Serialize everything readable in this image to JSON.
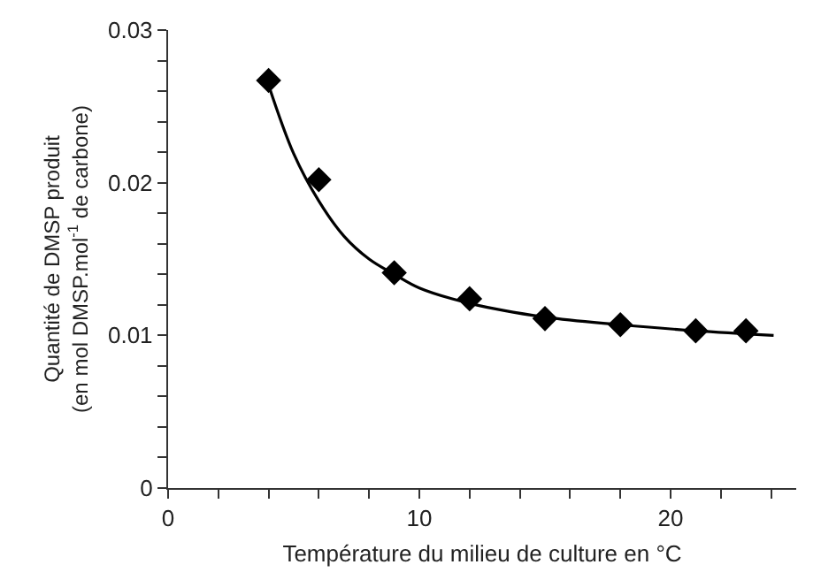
{
  "chart_data": {
    "type": "scatter",
    "xlabel": "Température du milieu de culture en °C",
    "ylabel": "Quantité de DMSP produit\n(en mol DMSP.mol$^{-1}$ de carbone)",
    "series": [
      {
        "color": "#000000",
        "marker": "diamond",
        "x": [
          4,
          6,
          9,
          12,
          15,
          18,
          21,
          23
        ],
        "values": [
          0.0267,
          0.0202,
          0.0141,
          0.0124,
          0.0111,
          0.0107,
          0.0103,
          0.0103
        ]
      },
      {
        "type": "line",
        "color": "#000000",
        "marker": "none",
        "line_style": "solid",
        "x": [
          4,
          5,
          6,
          7,
          8,
          9,
          10,
          12,
          15,
          18,
          21,
          24.1
        ],
        "values": [
          0.0264,
          0.0219,
          0.0188,
          0.0165,
          0.015,
          0.014,
          0.0131,
          0.0121,
          0.0112,
          0.0107,
          0.0103,
          0.01
        ]
      }
    ],
    "xlim": [
      0,
      25
    ],
    "ylim": [
      0,
      0.03
    ],
    "xticks": [
      0,
      {
        "value": 2,
        "label": null
      },
      {
        "value": 4,
        "label": null
      },
      {
        "value": 6,
        "label": null
      },
      {
        "value": 8,
        "label": null
      },
      10,
      {
        "value": 12,
        "label": null
      },
      {
        "value": 14,
        "label": null
      },
      {
        "value": 16,
        "label": null
      },
      {
        "value": 18,
        "label": null
      },
      20,
      {
        "value": 22,
        "label": null
      },
      {
        "value": 24,
        "label": null
      }
    ],
    "yticks": [
      0,
      {
        "value": 0.002,
        "label": null
      },
      {
        "value": 0.004,
        "label": null
      },
      {
        "value": 0.006,
        "label": null
      },
      {
        "value": 0.008,
        "label": null
      },
      0.01,
      {
        "value": 0.012,
        "label": null
      },
      {
        "value": 0.014,
        "label": null
      },
      {
        "value": 0.016,
        "label": null
      },
      {
        "value": 0.018,
        "label": null
      },
      0.02,
      {
        "value": 0.022,
        "label": null
      },
      {
        "value": 0.024,
        "label": null
      },
      {
        "value": 0.026,
        "label": null
      },
      {
        "value": 0.028,
        "label": null
      },
      0.03
    ]
  }
}
